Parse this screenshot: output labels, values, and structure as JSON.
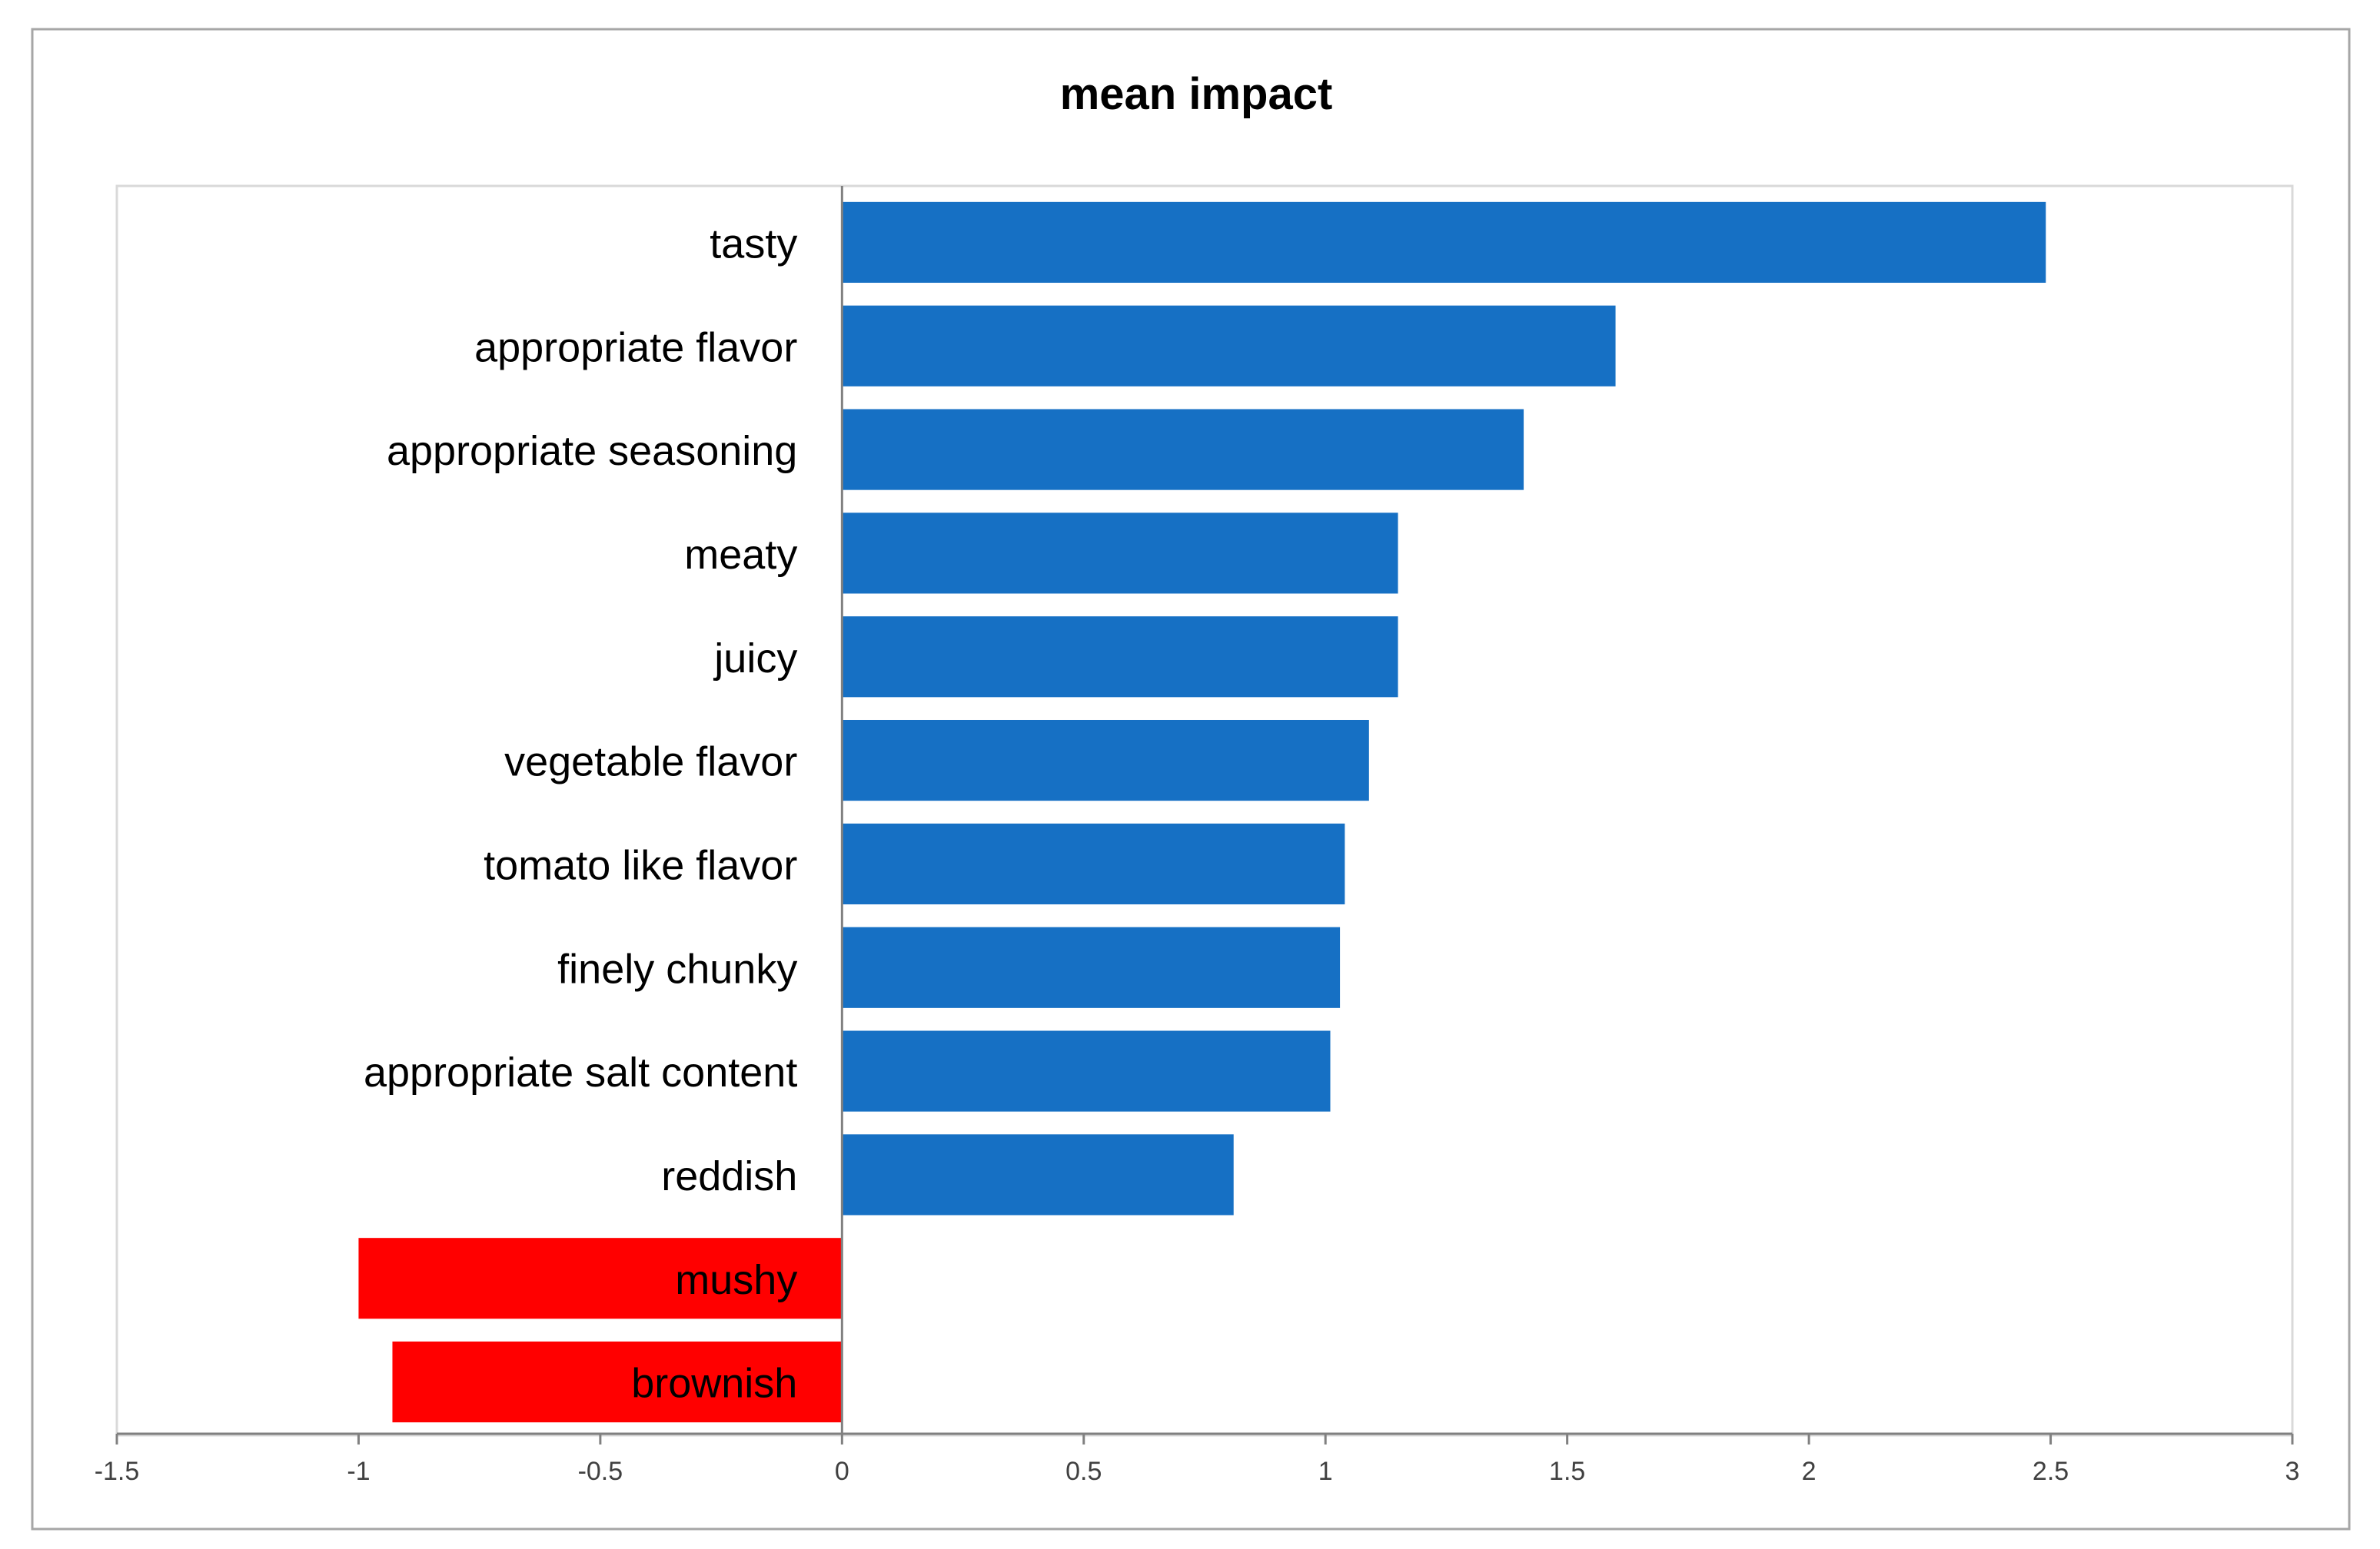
{
  "chart_data": {
    "type": "bar",
    "orientation": "horizontal",
    "title": "mean impact",
    "xlabel": "",
    "ylabel": "",
    "xlim": [
      -1.5,
      3
    ],
    "x_ticks": [
      -1.5,
      -1,
      -0.5,
      0,
      0.5,
      1,
      1.5,
      2,
      2.5,
      3
    ],
    "x_tick_labels": [
      "-1.5",
      "-1",
      "-0.5",
      "0",
      "0.5",
      "1",
      "1.5",
      "2",
      "2.5",
      "3"
    ],
    "grid": false,
    "legend": "none",
    "categories": [
      "tasty",
      "appropriate flavor",
      "appropriate seasoning",
      "meaty",
      "juicy",
      "vegetable flavor",
      "tomato like flavor",
      "finely chunky",
      "appropriate salt content",
      "reddish",
      "mushy",
      "brownish"
    ],
    "values": [
      2.49,
      1.6,
      1.41,
      1.15,
      1.15,
      1.09,
      1.04,
      1.03,
      1.01,
      0.81,
      -1.0,
      -0.93
    ],
    "colors": {
      "positive": "#1670C4",
      "negative": "#FF0000",
      "axis": "#808080",
      "frame": "#A6A6A6",
      "title": "#000000",
      "label": "#000000"
    }
  }
}
